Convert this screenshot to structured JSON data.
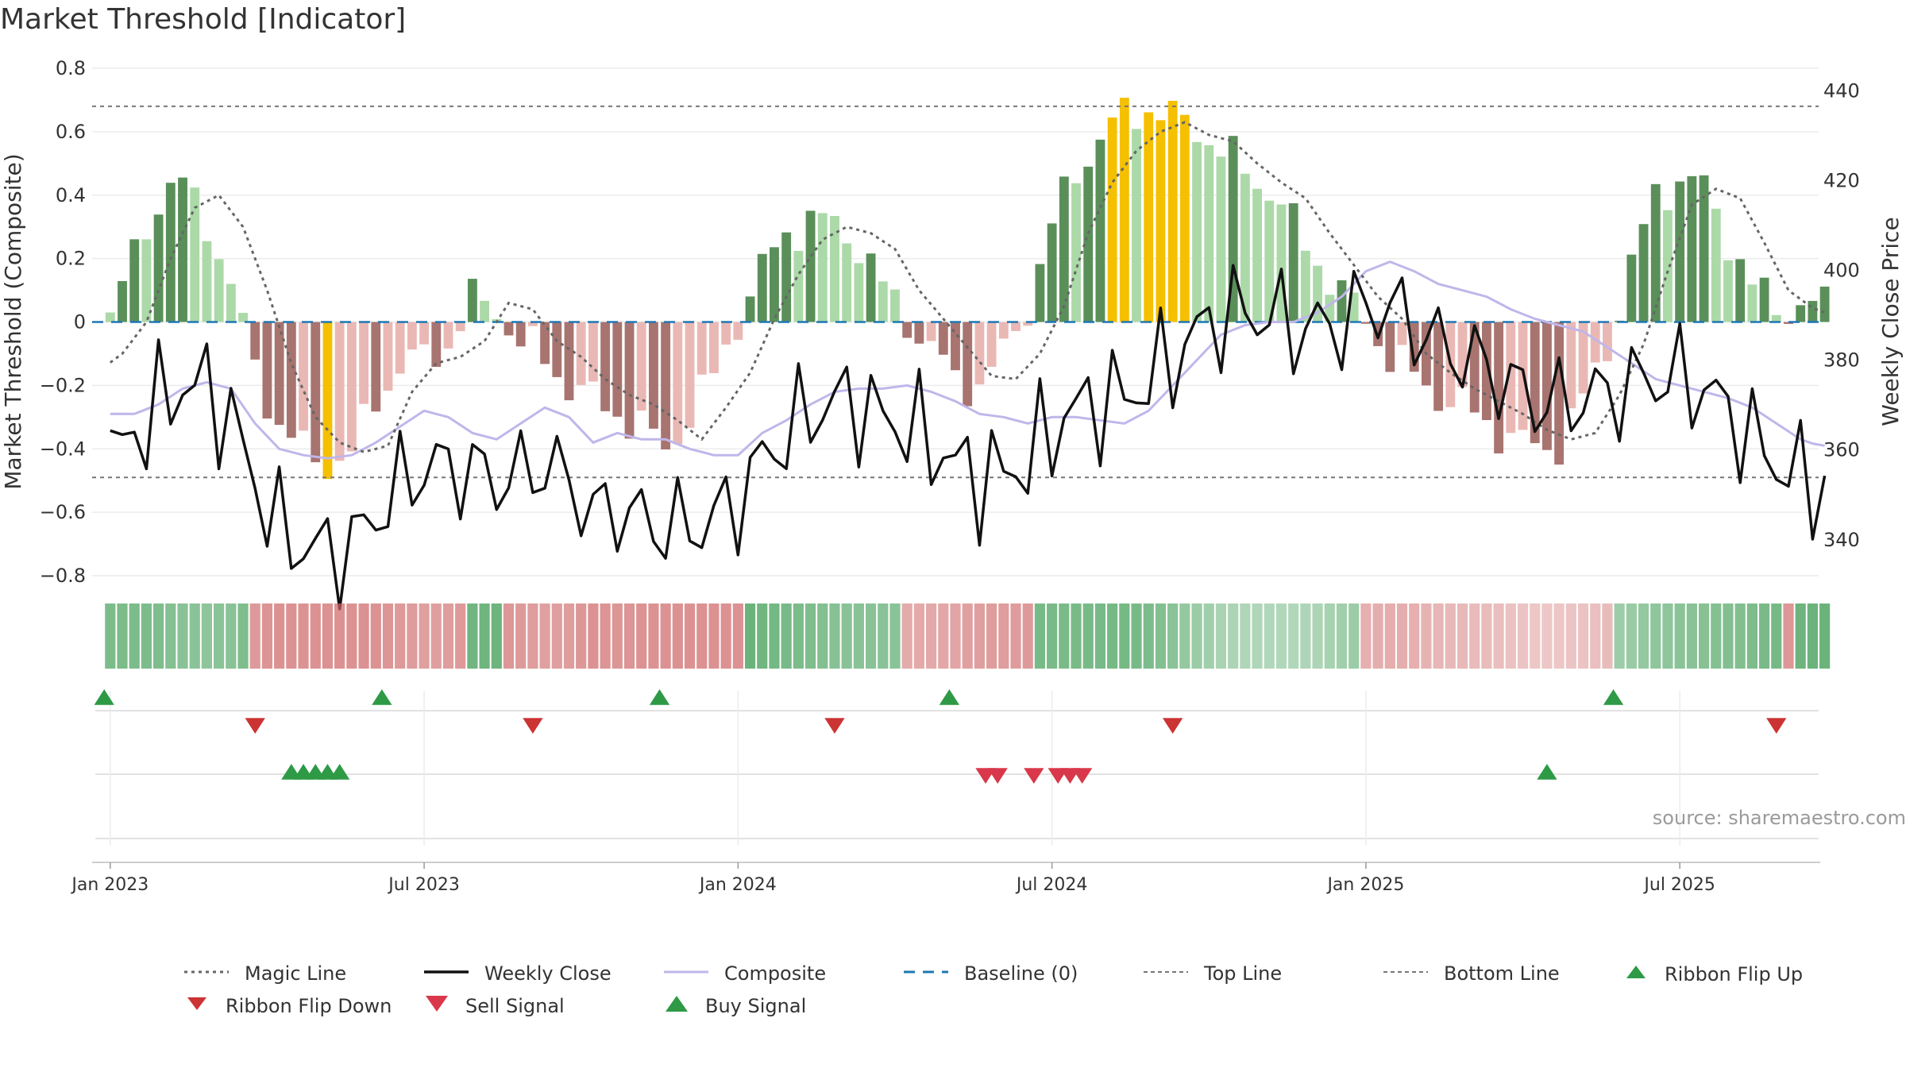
{
  "chart_data": {
    "type": "bar",
    "title": "Market Threshold [Indicator]",
    "ylabel": "Market Threshold (Composite)",
    "y2label": "Weekly Close Price",
    "ylim": [
      -0.8,
      0.8
    ],
    "y2lim": [
      332,
      445
    ],
    "yticks": [
      "0.8",
      "0.6",
      "0.4",
      "0.2",
      "0",
      "−0.2",
      "−0.4",
      "−0.6",
      "−0.8"
    ],
    "yticks_values": [
      0.8,
      0.6,
      0.4,
      0.2,
      0,
      -0.2,
      -0.4,
      -0.6,
      -0.8
    ],
    "y2ticks": [
      "440",
      "420",
      "400",
      "380",
      "360",
      "340"
    ],
    "y2ticks_values": [
      440,
      420,
      400,
      380,
      360,
      340
    ],
    "xticks": [
      "Jan 2023",
      "Jul 2023",
      "Jan 2024",
      "Jul 2024",
      "Jan 2025",
      "Jul 2025"
    ],
    "xticks_week": [
      0,
      26,
      52,
      78,
      104,
      130
    ],
    "top_line": 0.68,
    "bottom_line": -0.49,
    "baseline": 0,
    "week_range": [
      -1.5,
      141.5
    ],
    "weeks": 143,
    "colors": {
      "strong_pos": "#5a8f5a",
      "weak_pos": "#acd9a8",
      "strong_neg": "#a87470",
      "weak_neg": "#eab8b4",
      "extreme": "#f5c000",
      "close": "#111111",
      "composite": "#c0b6ea",
      "magic": "#666666",
      "baseline": "#1f77b4",
      "buy": "#2e9a46",
      "sell": "#d63a3a"
    },
    "composite_keys": [
      [
        -1.5,
        -0.29
      ],
      [
        2,
        -0.29
      ],
      [
        4,
        -0.26
      ],
      [
        6,
        -0.21
      ],
      [
        8,
        -0.19
      ],
      [
        10,
        -0.21
      ],
      [
        12,
        -0.32
      ],
      [
        14,
        -0.4
      ],
      [
        16,
        -0.42
      ],
      [
        18,
        -0.43
      ],
      [
        20,
        -0.42
      ],
      [
        22,
        -0.38
      ],
      [
        24,
        -0.33
      ],
      [
        26,
        -0.28
      ],
      [
        28,
        -0.3
      ],
      [
        30,
        -0.35
      ],
      [
        32,
        -0.37
      ],
      [
        34,
        -0.32
      ],
      [
        36,
        -0.27
      ],
      [
        38,
        -0.3
      ],
      [
        40,
        -0.38
      ],
      [
        42,
        -0.35
      ],
      [
        44,
        -0.37
      ],
      [
        46,
        -0.37
      ],
      [
        48,
        -0.4
      ],
      [
        50,
        -0.42
      ],
      [
        52,
        -0.42
      ],
      [
        54,
        -0.35
      ],
      [
        56,
        -0.31
      ],
      [
        58,
        -0.26
      ],
      [
        60,
        -0.22
      ],
      [
        62,
        -0.21
      ],
      [
        64,
        -0.21
      ],
      [
        66,
        -0.2
      ],
      [
        68,
        -0.22
      ],
      [
        70,
        -0.25
      ],
      [
        72,
        -0.29
      ],
      [
        74,
        -0.3
      ],
      [
        76,
        -0.32
      ],
      [
        78,
        -0.3
      ],
      [
        80,
        -0.3
      ],
      [
        82,
        -0.31
      ],
      [
        84,
        -0.32
      ],
      [
        86,
        -0.28
      ],
      [
        88,
        -0.2
      ],
      [
        90,
        -0.12
      ],
      [
        92,
        -0.04
      ],
      [
        94,
        -0.01
      ],
      [
        96,
        0
      ],
      [
        98,
        0
      ],
      [
        100,
        0.03
      ],
      [
        102,
        0.08
      ],
      [
        104,
        0.16
      ],
      [
        106,
        0.19
      ],
      [
        108,
        0.16
      ],
      [
        110,
        0.12
      ],
      [
        112,
        0.1
      ],
      [
        114,
        0.08
      ],
      [
        116,
        0.04
      ],
      [
        118,
        0.01
      ],
      [
        120,
        -0.01
      ],
      [
        122,
        -0.03
      ],
      [
        124,
        -0.08
      ],
      [
        126,
        -0.13
      ],
      [
        128,
        -0.18
      ],
      [
        130,
        -0.2
      ],
      [
        132,
        -0.22
      ],
      [
        134,
        -0.24
      ],
      [
        136,
        -0.27
      ],
      [
        138,
        -0.32
      ],
      [
        140,
        -0.37
      ],
      [
        141.5,
        -0.39
      ]
    ],
    "magic_keys": [
      [
        -1.5,
        -0.17
      ],
      [
        1,
        -0.1
      ],
      [
        3,
        0
      ],
      [
        5,
        0.2
      ],
      [
        7,
        0.36
      ],
      [
        9,
        0.4
      ],
      [
        11,
        0.3
      ],
      [
        13,
        0.1
      ],
      [
        15,
        -0.13
      ],
      [
        17,
        -0.3
      ],
      [
        19,
        -0.38
      ],
      [
        21,
        -0.41
      ],
      [
        23,
        -0.39
      ],
      [
        25,
        -0.22
      ],
      [
        27,
        -0.13
      ],
      [
        29,
        -0.11
      ],
      [
        31,
        -0.06
      ],
      [
        33,
        0.06
      ],
      [
        35,
        0.04
      ],
      [
        37,
        -0.06
      ],
      [
        39,
        -0.11
      ],
      [
        41,
        -0.18
      ],
      [
        43,
        -0.23
      ],
      [
        45,
        -0.26
      ],
      [
        47,
        -0.31
      ],
      [
        49,
        -0.37
      ],
      [
        51,
        -0.27
      ],
      [
        53,
        -0.16
      ],
      [
        55,
        0.01
      ],
      [
        57,
        0.15
      ],
      [
        59,
        0.26
      ],
      [
        61,
        0.3
      ],
      [
        63,
        0.28
      ],
      [
        65,
        0.23
      ],
      [
        67,
        0.1
      ],
      [
        69,
        0.01
      ],
      [
        71,
        -0.08
      ],
      [
        73,
        -0.17
      ],
      [
        75,
        -0.18
      ],
      [
        77,
        -0.1
      ],
      [
        79,
        0.05
      ],
      [
        81,
        0.28
      ],
      [
        83,
        0.44
      ],
      [
        85,
        0.54
      ],
      [
        87,
        0.6
      ],
      [
        89,
        0.63
      ],
      [
        91,
        0.59
      ],
      [
        93,
        0.57
      ],
      [
        95,
        0.5
      ],
      [
        97,
        0.44
      ],
      [
        99,
        0.39
      ],
      [
        101,
        0.28
      ],
      [
        103,
        0.18
      ],
      [
        105,
        0.08
      ],
      [
        107,
        0.01
      ],
      [
        109,
        -0.1
      ],
      [
        111,
        -0.16
      ],
      [
        113,
        -0.21
      ],
      [
        115,
        -0.25
      ],
      [
        117,
        -0.29
      ],
      [
        119,
        -0.34
      ],
      [
        121,
        -0.37
      ],
      [
        123,
        -0.35
      ],
      [
        125,
        -0.23
      ],
      [
        127,
        -0.07
      ],
      [
        129,
        0.16
      ],
      [
        131,
        0.37
      ],
      [
        133,
        0.42
      ],
      [
        135,
        0.39
      ],
      [
        137,
        0.25
      ],
      [
        139,
        0.1
      ],
      [
        141.5,
        0.03
      ]
    ]
  },
  "signals": {
    "ribbon_flip_up": [
      -0.5,
      22.5,
      45.5,
      69.5,
      124.5
    ],
    "ribbon_flip_down": [
      12,
      35,
      60,
      88,
      138
    ],
    "buy_signal": [
      15,
      16,
      17,
      18,
      19,
      119
    ],
    "sell_signal": [
      72.5,
      73.5,
      76.5,
      78.5,
      79.5,
      80.5
    ]
  },
  "source_note": "source: sharemaestro.com",
  "legend": [
    {
      "label": "Magic Line",
      "key": "magic"
    },
    {
      "label": "Weekly Close",
      "key": "close"
    },
    {
      "label": "Composite",
      "key": "composite"
    },
    {
      "label": "Baseline (0)",
      "key": "baseline"
    },
    {
      "label": "Top Line",
      "key": "top"
    },
    {
      "label": "Bottom Line",
      "key": "bottom"
    },
    {
      "label": "Ribbon Flip Up",
      "key": "flip_up"
    },
    {
      "label": "Ribbon Flip Down",
      "key": "flip_down"
    },
    {
      "label": "Sell Signal",
      "key": "sell"
    },
    {
      "label": "Buy Signal",
      "key": "buy"
    }
  ]
}
